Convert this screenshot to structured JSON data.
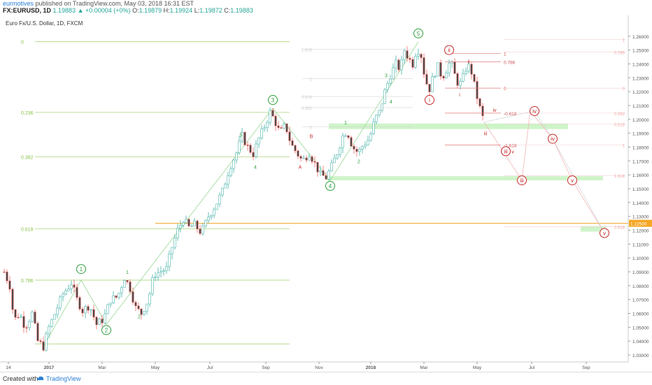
{
  "header": {
    "username": "eurmotives",
    "published_text": "published on TradingView.com, May 03, 2018 16:31 EST",
    "symbol": "FX:EURUSD, 1D",
    "last": "1.19883",
    "change": "▲ +0.00004 (+0%)",
    "o_label": "O:",
    "o": "1.19879",
    "h_label": "H:",
    "h": "1.19924",
    "l_label": "L:",
    "l": "1.19872",
    "c_label": "C:",
    "c": "1.19883"
  },
  "footer": {
    "created_with": "Created with",
    "brand": "TradingView"
  },
  "colors": {
    "up": "#26a69a",
    "down": "#ef5350",
    "candle_body": "#4a4a4a",
    "fib_green": "#8bc34a",
    "wave_green": "#2e9e3c",
    "wave_red": "#c62828",
    "support_zone": "#b9f0b0",
    "orange_line": "#f5a623",
    "axis_text": "#555555"
  },
  "chart_data": {
    "type": "candlestick",
    "title": "Euro Fx/U.S. Dollar, 1D, FXCM",
    "ylim": [
      1.025,
      1.275
    ],
    "y_ticks": [
      "1.26000",
      "1.25000",
      "1.24000",
      "1.23000",
      "1.22000",
      "1.21000",
      "1.20000",
      "1.19000",
      "1.18000",
      "1.17000",
      "1.16000",
      "1.15000",
      "1.14000",
      "1.13000",
      "1.12000",
      "1.11000",
      "1.10000",
      "1.09000",
      "1.08000",
      "1.07000",
      "1.06000",
      "1.05000",
      "1.04000",
      "1.03000"
    ],
    "x_ticks": [
      "14",
      "2017",
      "Mar",
      "May",
      "Jul",
      "Sep",
      "Nov",
      "2018",
      "Mar",
      "May",
      "Jul",
      "Sep"
    ],
    "current_price_label": "1.12500",
    "price_path": [
      [
        0,
        1.09
      ],
      [
        8,
        1.08
      ],
      [
        14,
        1.055
      ],
      [
        22,
        1.06
      ],
      [
        30,
        1.05
      ],
      [
        40,
        1.06
      ],
      [
        48,
        1.04
      ],
      [
        56,
        1.036
      ],
      [
        64,
        1.05
      ],
      [
        74,
        1.062
      ],
      [
        84,
        1.074
      ],
      [
        96,
        1.082
      ],
      [
        104,
        1.07
      ],
      [
        112,
        1.062
      ],
      [
        122,
        1.066
      ],
      [
        132,
        1.052
      ],
      [
        142,
        1.056
      ],
      [
        152,
        1.07
      ],
      [
        162,
        1.072
      ],
      [
        172,
        1.086
      ],
      [
        180,
        1.078
      ],
      [
        188,
        1.064
      ],
      [
        196,
        1.06
      ],
      [
        206,
        1.07
      ],
      [
        214,
        1.088
      ],
      [
        222,
        1.09
      ],
      [
        232,
        1.092
      ],
      [
        240,
        1.108
      ],
      [
        248,
        1.12
      ],
      [
        256,
        1.128
      ],
      [
        264,
        1.122
      ],
      [
        272,
        1.124
      ],
      [
        282,
        1.118
      ],
      [
        292,
        1.13
      ],
      [
        302,
        1.138
      ],
      [
        312,
        1.148
      ],
      [
        322,
        1.165
      ],
      [
        332,
        1.176
      ],
      [
        340,
        1.188
      ],
      [
        348,
        1.18
      ],
      [
        356,
        1.175
      ],
      [
        364,
        1.186
      ],
      [
        372,
        1.195
      ],
      [
        380,
        1.205
      ],
      [
        386,
        1.2
      ],
      [
        394,
        1.19
      ],
      [
        402,
        1.196
      ],
      [
        410,
        1.182
      ],
      [
        418,
        1.176
      ],
      [
        426,
        1.17
      ],
      [
        436,
        1.176
      ],
      [
        444,
        1.168
      ],
      [
        452,
        1.16
      ],
      [
        460,
        1.158
      ],
      [
        468,
        1.166
      ],
      [
        476,
        1.176
      ],
      [
        484,
        1.188
      ],
      [
        490,
        1.192
      ],
      [
        498,
        1.18
      ],
      [
        506,
        1.176
      ],
      [
        514,
        1.182
      ],
      [
        522,
        1.186
      ],
      [
        530,
        1.2
      ],
      [
        536,
        1.205
      ],
      [
        544,
        1.22
      ],
      [
        552,
        1.232
      ],
      [
        560,
        1.24
      ],
      [
        566,
        1.236
      ],
      [
        572,
        1.25
      ],
      [
        578,
        1.244
      ],
      [
        584,
        1.24
      ],
      [
        590,
        1.252
      ],
      [
        596,
        1.246
      ],
      [
        602,
        1.228
      ],
      [
        608,
        1.222
      ],
      [
        614,
        1.232
      ],
      [
        620,
        1.238
      ],
      [
        626,
        1.23
      ],
      [
        632,
        1.236
      ],
      [
        638,
        1.242
      ],
      [
        644,
        1.232
      ],
      [
        650,
        1.224
      ],
      [
        656,
        1.23
      ],
      [
        662,
        1.24
      ],
      [
        668,
        1.234
      ],
      [
        674,
        1.22
      ],
      [
        680,
        1.208
      ],
      [
        686,
        1.198
      ]
    ],
    "fib_levels": [
      {
        "label": "0",
        "price": 1.256
      },
      {
        "label": "0.236",
        "price": 1.205
      },
      {
        "label": "0.382",
        "price": 1.173
      },
      {
        "label": "0.618",
        "price": 1.121
      },
      {
        "label": "0.786",
        "price": 1.084
      }
    ],
    "fib_inner_labels": [
      {
        "label": "1.618",
        "price": 1.2505
      },
      {
        "label": "1",
        "price": 1.2295
      },
      {
        "label": "0.618",
        "price": 1.2165
      },
      {
        "label": "0.382",
        "price": 1.2085
      },
      {
        "label": "0",
        "price": 1.1945
      }
    ],
    "fib_red_labels": [
      {
        "label": "1",
        "price": 1.2475
      },
      {
        "label": "0.786",
        "price": 1.2415
      },
      {
        "label": "0",
        "price": 1.2225
      },
      {
        "label": "-0.618",
        "price": 1.2045
      },
      {
        "label": "-1.618",
        "price": 1.1815
      }
    ],
    "fib_right_labels": [
      {
        "label": "1",
        "price": 1.2575
      },
      {
        "label": "0.786",
        "price": 1.2485
      },
      {
        "label": "0",
        "price": 1.2225
      },
      {
        "label": "0.382",
        "price": 1.2045
      },
      {
        "label": "0.618",
        "price": 1.1965
      },
      {
        "label": "1",
        "price": 1.1815
      },
      {
        "label": "1.618",
        "price": 1.1595
      },
      {
        "label": "2.618",
        "price": 1.1225
      }
    ],
    "wave_labels_green": [
      {
        "label": "1",
        "date_idx": 110,
        "price": 1.092,
        "circled": true
      },
      {
        "label": "2",
        "date_idx": 146,
        "price": 1.048,
        "circled": true
      },
      {
        "label": "3",
        "date_idx": 384,
        "price": 1.214,
        "circled": true
      },
      {
        "label": "4",
        "date_idx": 466,
        "price": 1.152,
        "circled": true
      },
      {
        "label": "5",
        "date_idx": 592,
        "price": 1.262,
        "circled": true
      },
      {
        "label": "1",
        "date_idx": 176,
        "price": 1.09
      },
      {
        "label": "2",
        "date_idx": 193,
        "price": 1.058
      },
      {
        "label": "3",
        "date_idx": 338,
        "price": 1.189
      },
      {
        "label": "4",
        "date_idx": 359,
        "price": 1.166
      },
      {
        "label": "1",
        "date_idx": 488,
        "price": 1.198
      },
      {
        "label": "2",
        "date_idx": 507,
        "price": 1.17
      },
      {
        "label": "3",
        "date_idx": 546,
        "price": 1.232
      },
      {
        "label": "4",
        "date_idx": 553,
        "price": 1.213
      }
    ],
    "wave_labels_red": [
      {
        "label": "A",
        "date_idx": 423,
        "price": 1.166
      },
      {
        "label": "B",
        "date_idx": 439,
        "price": 1.188
      },
      {
        "label": "i",
        "date_idx": 608,
        "price": 1.214,
        "circled": true
      },
      {
        "label": "ii",
        "date_idx": 636,
        "price": 1.25,
        "circled": true
      },
      {
        "label": "i",
        "date_idx": 651,
        "price": 1.218
      },
      {
        "label": "ii",
        "date_idx": 664,
        "price": 1.242
      },
      {
        "label": "iii",
        "date_idx": 688,
        "price": 1.19
      },
      {
        "label": "iv",
        "date_idx": 701,
        "price": 1.207
      },
      {
        "label": "iii",
        "date_idx": 717,
        "price": 1.177,
        "circled": true
      },
      {
        "label": "v",
        "date_idx": 727,
        "price": 1.177
      },
      {
        "label": "iv",
        "date_idx": 758,
        "price": 1.206,
        "circled": true
      },
      {
        "label": "iii",
        "date_idx": 740,
        "price": 1.156,
        "circled": true
      },
      {
        "label": "iv",
        "date_idx": 784,
        "price": 1.186,
        "circled": true
      },
      {
        "label": "v",
        "date_idx": 812,
        "price": 1.156,
        "circled": true
      },
      {
        "label": "v",
        "date_idx": 858,
        "price": 1.118,
        "circled": true
      }
    ]
  }
}
